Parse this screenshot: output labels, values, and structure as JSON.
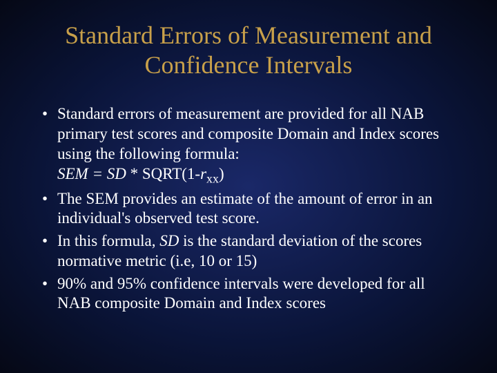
{
  "slide": {
    "title": "Standard Errors of Measurement and Confidence Intervals",
    "bullets": [
      {
        "text_html": "Standard errors of measurement are provided for all NAB primary test scores and composite Domain and Index scores using the following formula:<br><span class=\"italic\">SEM = SD</span> * SQRT(1-<span class=\"italic\">r</span><span class=\"sub\">xx</span>)"
      },
      {
        "text_html": "The SEM provides an estimate of the amount of error in an individual's observed test score."
      },
      {
        "text_html": "In this formula, <span class=\"italic\">SD</span> is the standard deviation of the scores normative metric (i.e, 10 or 15)"
      },
      {
        "text_html": "90% and 95% confidence intervals were developed for all NAB composite Domain and Index scores"
      }
    ],
    "colors": {
      "title_color": "#c8a04a",
      "text_color": "#ffffff",
      "bg_center": "#1a2868",
      "bg_outer": "#050815"
    },
    "typography": {
      "title_fontsize": 36,
      "body_fontsize": 23,
      "font_family": "Georgia, Times New Roman, serif"
    }
  }
}
